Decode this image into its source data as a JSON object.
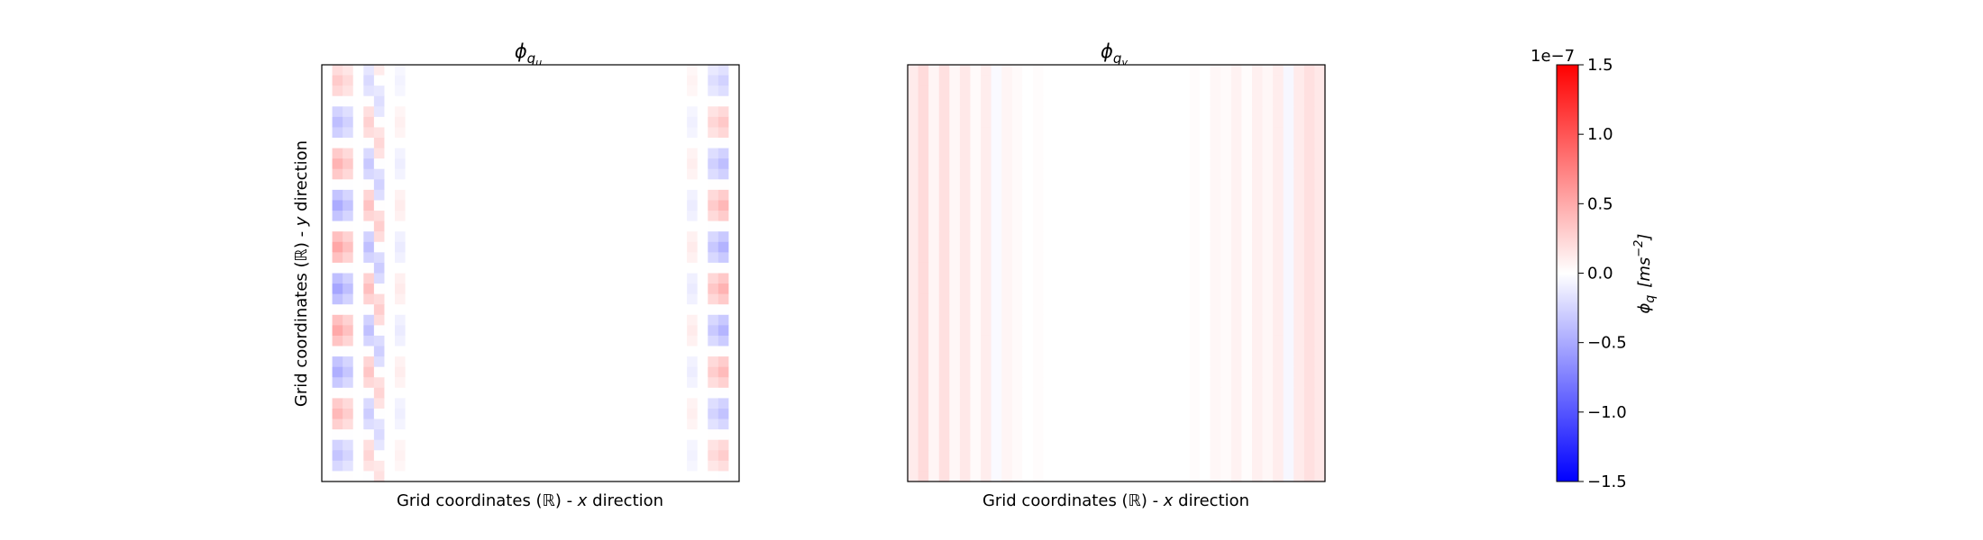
{
  "chart_data": [
    {
      "type": "heatmap",
      "title": "ϕ",
      "title_subscript": "q",
      "title_subsubscript": "u",
      "xlabel_pre": "Grid coordinates (",
      "xlabel_symbol": "ℝ",
      "xlabel_mid": ") - ",
      "xlabel_var": "x",
      "xlabel_post": " direction",
      "ylabel_pre": "Grid coordinates (",
      "ylabel_symbol": "ℝ",
      "ylabel_mid": ") - ",
      "ylabel_var": "y",
      "ylabel_post": " direction",
      "grid_size": [
        40,
        40
      ],
      "colormap": "bwr",
      "vmin": -1.5e-07,
      "vmax": 1.5e-07,
      "pattern": "alternating red/blue cells along the left and right boundary columns, near zero in the interior",
      "stripes": [
        {
          "column": 1,
          "amplitude": 0.35,
          "phase": 0.0
        },
        {
          "column": 2,
          "amplitude": 0.25,
          "phase": 0.0
        },
        {
          "column": 4,
          "amplitude": -0.25,
          "phase": 0.0
        },
        {
          "column": 5,
          "amplitude": 0.2,
          "phase": 1.57
        },
        {
          "column": 7,
          "amplitude": -0.08,
          "phase": 0.0
        },
        {
          "column": 35,
          "amplitude": 0.08,
          "phase": 0.0
        },
        {
          "column": 37,
          "amplitude": -0.22,
          "phase": 0.0
        },
        {
          "column": 38,
          "amplitude": -0.3,
          "phase": 0.0
        }
      ],
      "row_period": 8
    },
    {
      "type": "heatmap",
      "title": "ϕ",
      "title_subscript": "q",
      "title_subsubscript": "v",
      "xlabel_pre": "Grid coordinates (",
      "xlabel_symbol": "ℝ",
      "xlabel_mid": ") - ",
      "xlabel_var": "x",
      "xlabel_post": " direction",
      "grid_size": [
        40,
        40
      ],
      "colormap": "bwr",
      "vmin": -1.5e-07,
      "vmax": 1.5e-07,
      "pattern": "vertical stripes, mostly faint red, strongest near the left and right edges",
      "column_values": [
        0.08,
        0.14,
        0.04,
        0.12,
        0.03,
        0.09,
        0.02,
        0.07,
        -0.02,
        0.04,
        0.02,
        0.0,
        0.01,
        0.0,
        0.0,
        0.0,
        0.0,
        0.0,
        0.0,
        0.0,
        0.0,
        0.0,
        0.0,
        0.0,
        0.0,
        0.0,
        0.0,
        0.01,
        0.0,
        0.03,
        0.02,
        0.05,
        0.01,
        0.06,
        0.03,
        0.07,
        -0.03,
        0.08,
        0.12,
        0.09
      ]
    }
  ],
  "colorbar": {
    "multiplier": "1e−7",
    "ticks": [
      1.5,
      1.0,
      0.5,
      0.0,
      -0.5,
      -1.0,
      -1.5
    ],
    "tick_labels": [
      "1.5",
      "1.0",
      "0.5",
      "0.0",
      "−0.5",
      "−1.0",
      "−1.5"
    ],
    "label_main": "ϕ",
    "label_sub": "q",
    "label_unit": "[ms",
    "label_exp": "−2",
    "label_close": "]",
    "colors": {
      "low": "#0000ff",
      "mid": "#ffffff",
      "high": "#ff0000"
    }
  }
}
